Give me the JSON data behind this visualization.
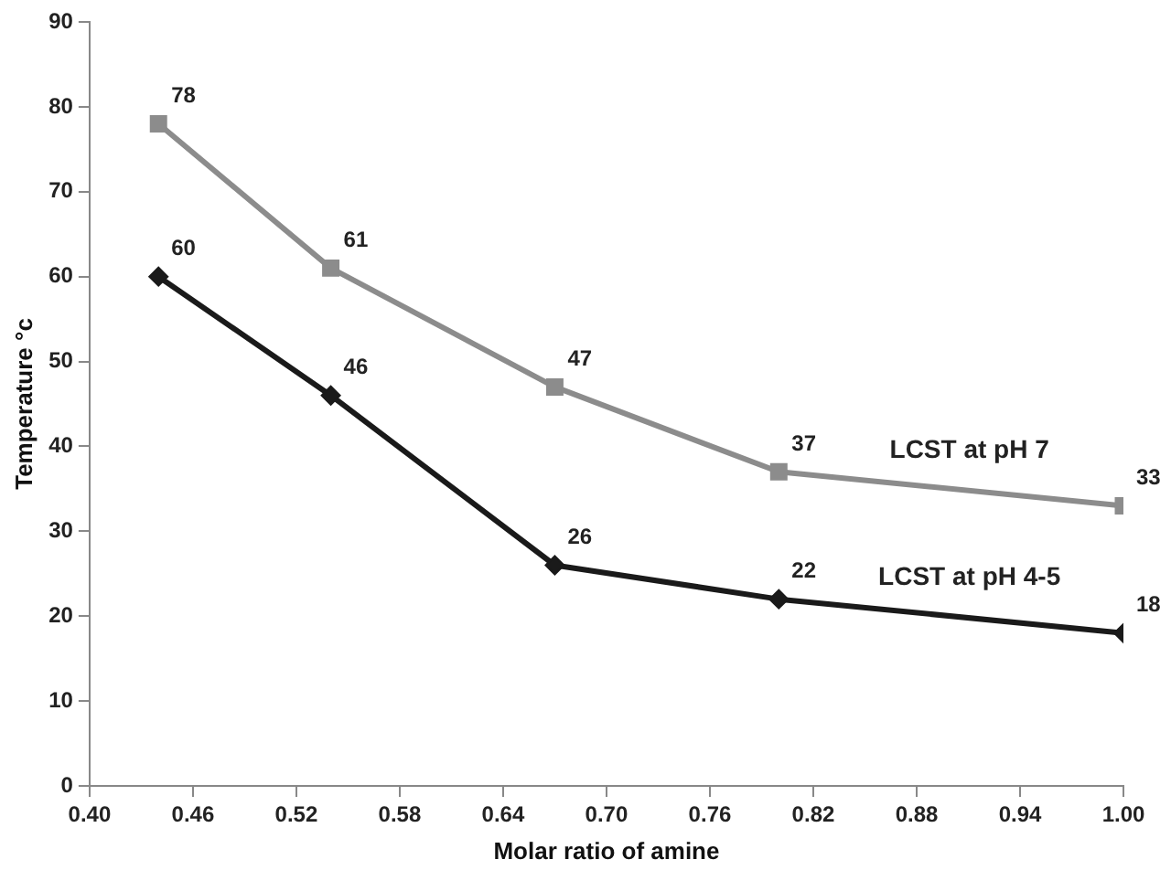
{
  "chart_data": {
    "type": "line",
    "xlabel": "Molar ratio of amine",
    "ylabel": "Temperature °c",
    "x": [
      0.44,
      0.54,
      0.67,
      0.8,
      1.0
    ],
    "series": [
      {
        "name": "LCST at pH 7",
        "color": "#8c8c8c",
        "marker": "square",
        "values": [
          78,
          61,
          47,
          37,
          33
        ]
      },
      {
        "name": "LCST at pH 4-5",
        "color": "#1a1a1a",
        "marker": "diamond",
        "values": [
          60,
          46,
          26,
          22,
          18
        ]
      }
    ],
    "xlim": [
      0.4,
      1.0
    ],
    "xticks": [
      {
        "value": 0.4,
        "label": "0.40"
      },
      {
        "value": 0.46,
        "label": "0.46"
      },
      {
        "value": 0.52,
        "label": "0.52"
      },
      {
        "value": 0.58,
        "label": "0.58"
      },
      {
        "value": 0.64,
        "label": "0.64"
      },
      {
        "value": 0.7,
        "label": "0.70"
      },
      {
        "value": 0.76,
        "label": "0.76"
      },
      {
        "value": 0.82,
        "label": "0.82"
      },
      {
        "value": 0.88,
        "label": "0.88"
      },
      {
        "value": 0.94,
        "label": "0.94"
      },
      {
        "value": 1.0,
        "label": "1.00"
      }
    ],
    "ylim": [
      0,
      90
    ],
    "yticks": [
      0,
      10,
      20,
      30,
      40,
      50,
      60,
      70,
      80,
      90
    ],
    "grid": false,
    "legend": false,
    "data_labels": true
  }
}
